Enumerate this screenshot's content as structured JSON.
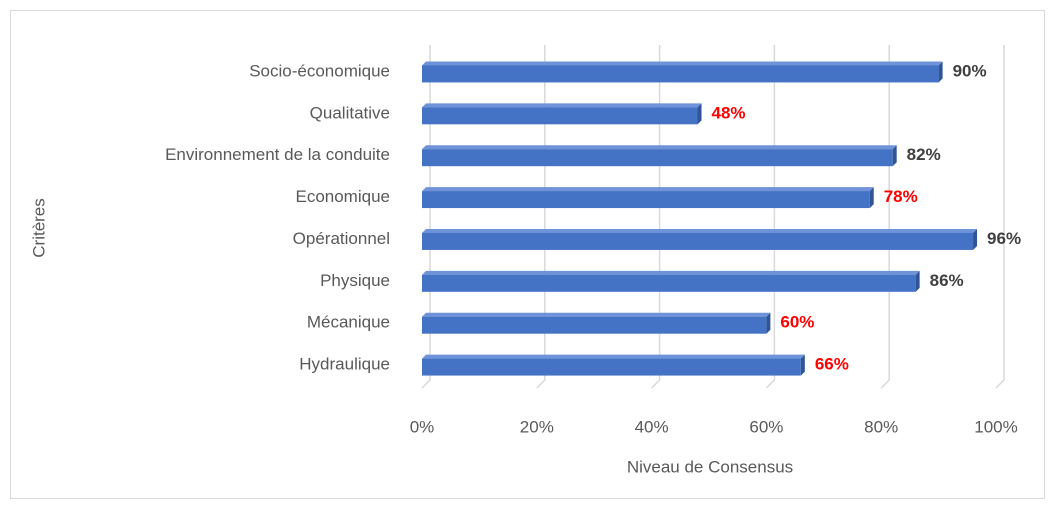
{
  "chart_data": {
    "type": "bar",
    "orientation": "horizontal",
    "categories": [
      "Socio-économique",
      "Qualitative",
      "Environnement de la conduite",
      "Economique",
      "Opérationnel",
      "Physique",
      "Mécanique",
      "Hydraulique"
    ],
    "values": [
      90,
      48,
      82,
      78,
      96,
      86,
      60,
      66
    ],
    "value_labels": [
      "90%",
      "48%",
      "82%",
      "78%",
      "96%",
      "86%",
      "60%",
      "66%"
    ],
    "value_label_colors": [
      "#404040",
      "#ff0000",
      "#404040",
      "#ff0000",
      "#404040",
      "#404040",
      "#ff0000",
      "#ff0000"
    ],
    "color": "#4472c4",
    "xlim": [
      0,
      100
    ],
    "xticks": [
      {
        "value": 0,
        "label": "0%"
      },
      {
        "value": 20,
        "label": "20%"
      },
      {
        "value": 40,
        "label": "40%"
      },
      {
        "value": 60,
        "label": "60%"
      },
      {
        "value": 80,
        "label": "80%"
      },
      {
        "value": 100,
        "label": "100%"
      }
    ],
    "x_label": "Niveau de Consensus",
    "y_label": "Critères",
    "grid": true
  }
}
